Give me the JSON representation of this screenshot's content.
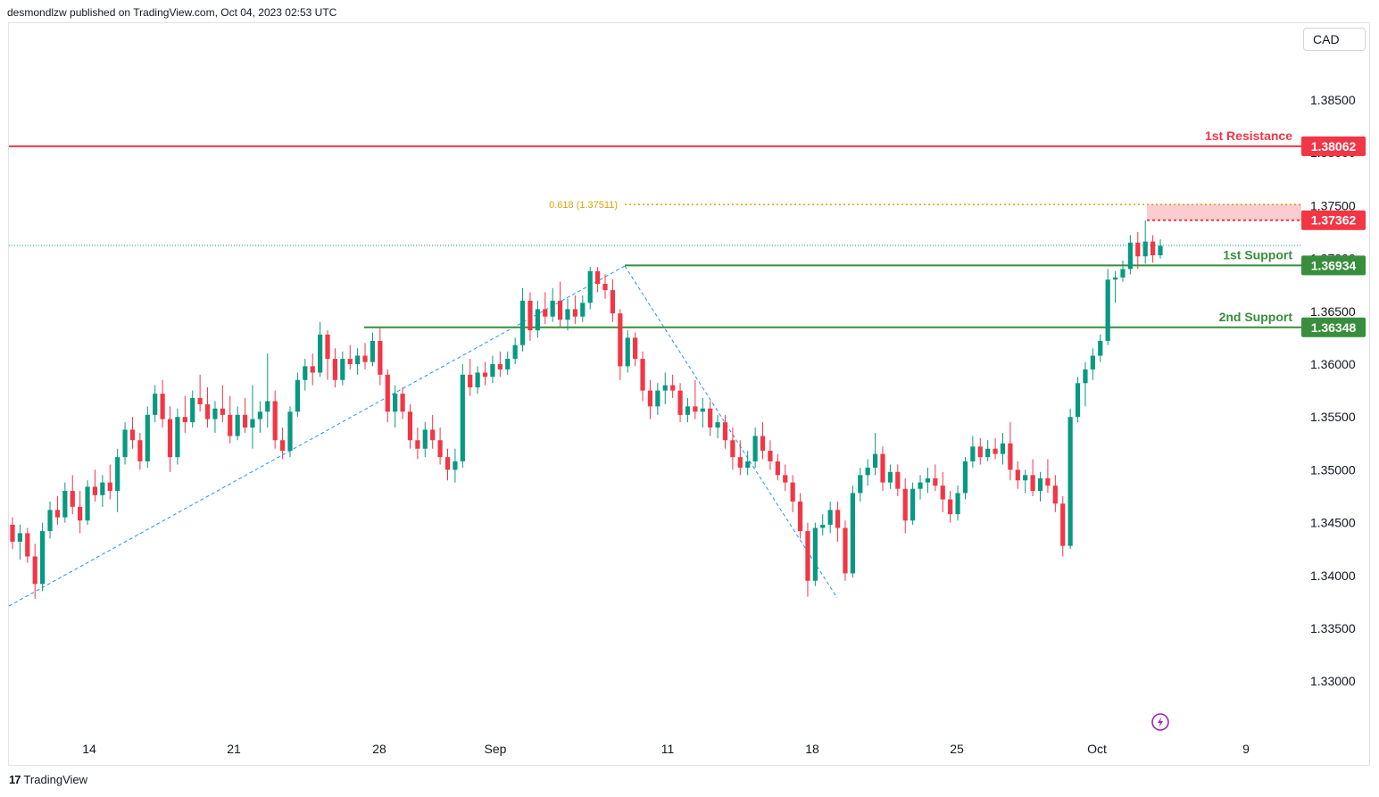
{
  "header": {
    "publisher": "desmondlzw published on TradingView.com, Oct 04, 2023 02:53 UTC"
  },
  "currency": "CAD",
  "footer": {
    "brand": "TradingView"
  },
  "chart_data": {
    "type": "candlestick",
    "y_ticks": [
      "1.38500",
      "1.38000",
      "1.37500",
      "1.37000",
      "1.36500",
      "1.36000",
      "1.35500",
      "1.35000",
      "1.34500",
      "1.34000",
      "1.33500",
      "1.33000"
    ],
    "y_tick_values": [
      1.385,
      1.38,
      1.375,
      1.37,
      1.365,
      1.36,
      1.355,
      1.35,
      1.345,
      1.34,
      1.335,
      1.33
    ],
    "x_ticks": [
      "14",
      "21",
      "28",
      "Sep",
      "11",
      "18",
      "25",
      "Oct",
      "9"
    ],
    "levels": [
      {
        "name": "1st Resistance",
        "value": "1.38062",
        "price": 1.38062,
        "color": "#f23645"
      },
      {
        "name": "1st Support",
        "value": "1.36934",
        "price": 1.36934,
        "color": "#388e3c"
      },
      {
        "name": "2nd Support",
        "value": "1.36348",
        "price": 1.36348,
        "color": "#388e3c"
      }
    ],
    "zone_level": {
      "value": "1.37362",
      "price": 1.37362,
      "color": "#f23645"
    },
    "fib": {
      "label": "0.618 (1.37511)",
      "price": 1.37511,
      "color": "#e3a008"
    },
    "candles": [
      [
        1.3448,
        1.3455,
        1.3425,
        1.3432
      ],
      [
        1.3432,
        1.3448,
        1.3415,
        1.344
      ],
      [
        1.344,
        1.3445,
        1.3412,
        1.3418
      ],
      [
        1.3418,
        1.343,
        1.3378,
        1.3392
      ],
      [
        1.3392,
        1.345,
        1.3385,
        1.3442
      ],
      [
        1.3442,
        1.347,
        1.3435,
        1.3462
      ],
      [
        1.3462,
        1.3475,
        1.3448,
        1.3455
      ],
      [
        1.3455,
        1.3488,
        1.345,
        1.348
      ],
      [
        1.348,
        1.3495,
        1.3458,
        1.3465
      ],
      [
        1.3465,
        1.348,
        1.344,
        1.3452
      ],
      [
        1.3452,
        1.349,
        1.3448,
        1.3484
      ],
      [
        1.3484,
        1.35,
        1.347,
        1.3476
      ],
      [
        1.3476,
        1.3495,
        1.3465,
        1.3488
      ],
      [
        1.3488,
        1.3505,
        1.3472,
        1.348
      ],
      [
        1.348,
        1.352,
        1.346,
        1.3512
      ],
      [
        1.3512,
        1.3545,
        1.3505,
        1.3538
      ],
      [
        1.3538,
        1.355,
        1.352,
        1.3528
      ],
      [
        1.3528,
        1.3535,
        1.35,
        1.3508
      ],
      [
        1.3508,
        1.356,
        1.3502,
        1.3552
      ],
      [
        1.3552,
        1.358,
        1.3545,
        1.3572
      ],
      [
        1.3572,
        1.3585,
        1.354,
        1.3548
      ],
      [
        1.3548,
        1.356,
        1.3498,
        1.3512
      ],
      [
        1.3512,
        1.3558,
        1.3505,
        1.355
      ],
      [
        1.355,
        1.357,
        1.3535,
        1.3545
      ],
      [
        1.3545,
        1.3575,
        1.354,
        1.3568
      ],
      [
        1.3568,
        1.359,
        1.3555,
        1.3562
      ],
      [
        1.3562,
        1.3578,
        1.354,
        1.3548
      ],
      [
        1.3548,
        1.3565,
        1.3535,
        1.3558
      ],
      [
        1.3558,
        1.358,
        1.3545,
        1.3552
      ],
      [
        1.3552,
        1.357,
        1.3525,
        1.3532
      ],
      [
        1.3532,
        1.356,
        1.3528,
        1.3552
      ],
      [
        1.3552,
        1.3568,
        1.3535,
        1.354
      ],
      [
        1.354,
        1.358,
        1.352,
        1.3548
      ],
      [
        1.3548,
        1.3565,
        1.3535,
        1.3555
      ],
      [
        1.3555,
        1.361,
        1.354,
        1.3565
      ],
      [
        1.3565,
        1.3575,
        1.352,
        1.3528
      ],
      [
        1.3528,
        1.354,
        1.351,
        1.3518
      ],
      [
        1.3518,
        1.356,
        1.3512,
        1.3555
      ],
      [
        1.3555,
        1.3592,
        1.355,
        1.3585
      ],
      [
        1.3585,
        1.3605,
        1.3575,
        1.3598
      ],
      [
        1.3598,
        1.361,
        1.358,
        1.3592
      ],
      [
        1.3592,
        1.364,
        1.3588,
        1.3628
      ],
      [
        1.3628,
        1.3632,
        1.3585,
        1.3605
      ],
      [
        1.3605,
        1.3615,
        1.3578,
        1.3585
      ],
      [
        1.3585,
        1.3612,
        1.358,
        1.3605
      ],
      [
        1.3605,
        1.3618,
        1.3595,
        1.36
      ],
      [
        1.36,
        1.3615,
        1.359,
        1.3608
      ],
      [
        1.3608,
        1.362,
        1.3595,
        1.3602
      ],
      [
        1.3602,
        1.363,
        1.3598,
        1.3622
      ],
      [
        1.3622,
        1.3635,
        1.358,
        1.359
      ],
      [
        1.359,
        1.3595,
        1.3545,
        1.3555
      ],
      [
        1.3555,
        1.358,
        1.354,
        1.3572
      ],
      [
        1.3572,
        1.3578,
        1.3548,
        1.3555
      ],
      [
        1.3555,
        1.3562,
        1.352,
        1.3528
      ],
      [
        1.3528,
        1.354,
        1.351,
        1.352
      ],
      [
        1.352,
        1.3545,
        1.3512,
        1.3538
      ],
      [
        1.3538,
        1.3552,
        1.352,
        1.3528
      ],
      [
        1.3528,
        1.354,
        1.3505,
        1.3512
      ],
      [
        1.3512,
        1.352,
        1.349,
        1.35
      ],
      [
        1.35,
        1.352,
        1.3488,
        1.3508
      ],
      [
        1.3508,
        1.36,
        1.3502,
        1.359
      ],
      [
        1.359,
        1.3605,
        1.357,
        1.3578
      ],
      [
        1.3578,
        1.3598,
        1.3572,
        1.3592
      ],
      [
        1.3592,
        1.3602,
        1.358,
        1.3588
      ],
      [
        1.3588,
        1.3608,
        1.3582,
        1.36
      ],
      [
        1.36,
        1.3612,
        1.3588,
        1.3595
      ],
      [
        1.3595,
        1.3612,
        1.359,
        1.3605
      ],
      [
        1.3605,
        1.3625,
        1.36,
        1.3618
      ],
      [
        1.3618,
        1.3672,
        1.3612,
        1.366
      ],
      [
        1.366,
        1.3668,
        1.3622,
        1.3632
      ],
      [
        1.3632,
        1.366,
        1.3625,
        1.3652
      ],
      [
        1.3652,
        1.3668,
        1.3638,
        1.3645
      ],
      [
        1.3645,
        1.3672,
        1.364,
        1.366
      ],
      [
        1.366,
        1.3678,
        1.3635,
        1.3642
      ],
      [
        1.3642,
        1.3662,
        1.3632,
        1.3652
      ],
      [
        1.3652,
        1.3665,
        1.3638,
        1.3645
      ],
      [
        1.3645,
        1.3665,
        1.364,
        1.3658
      ],
      [
        1.3658,
        1.3692,
        1.3652,
        1.3688
      ],
      [
        1.3688,
        1.3692,
        1.3668,
        1.3676
      ],
      [
        1.3676,
        1.3685,
        1.3662,
        1.367
      ],
      [
        1.367,
        1.368,
        1.364,
        1.3648
      ],
      [
        1.3648,
        1.3652,
        1.3585,
        1.3598
      ],
      [
        1.3598,
        1.3632,
        1.3592,
        1.3625
      ],
      [
        1.3625,
        1.363,
        1.3598,
        1.3605
      ],
      [
        1.3605,
        1.3612,
        1.3565,
        1.3575
      ],
      [
        1.3575,
        1.3585,
        1.3548,
        1.356
      ],
      [
        1.356,
        1.3582,
        1.3552,
        1.3575
      ],
      [
        1.3575,
        1.3592,
        1.3562,
        1.358
      ],
      [
        1.358,
        1.359,
        1.3568,
        1.3575
      ],
      [
        1.3575,
        1.3582,
        1.3545,
        1.3552
      ],
      [
        1.3552,
        1.3568,
        1.3545,
        1.356
      ],
      [
        1.356,
        1.3585,
        1.3548,
        1.3555
      ],
      [
        1.3555,
        1.3568,
        1.354,
        1.3558
      ],
      [
        1.3558,
        1.3565,
        1.3532,
        1.354
      ],
      [
        1.354,
        1.3552,
        1.353,
        1.3545
      ],
      [
        1.3545,
        1.3552,
        1.352,
        1.3528
      ],
      [
        1.3528,
        1.354,
        1.35,
        1.3512
      ],
      [
        1.3512,
        1.3528,
        1.3495,
        1.3502
      ],
      [
        1.3502,
        1.3518,
        1.3495,
        1.3508
      ],
      [
        1.3508,
        1.354,
        1.3502,
        1.3532
      ],
      [
        1.3532,
        1.3545,
        1.351,
        1.3518
      ],
      [
        1.3518,
        1.3528,
        1.35,
        1.3508
      ],
      [
        1.3508,
        1.3515,
        1.349,
        1.3495
      ],
      [
        1.3495,
        1.3505,
        1.348,
        1.3488
      ],
      [
        1.3488,
        1.3495,
        1.346,
        1.347
      ],
      [
        1.347,
        1.3478,
        1.3435,
        1.3442
      ],
      [
        1.3442,
        1.345,
        1.338,
        1.3395
      ],
      [
        1.3395,
        1.345,
        1.339,
        1.3445
      ],
      [
        1.3445,
        1.3458,
        1.3438,
        1.3448
      ],
      [
        1.3448,
        1.347,
        1.344,
        1.3462
      ],
      [
        1.3462,
        1.347,
        1.3432,
        1.3445
      ],
      [
        1.3445,
        1.3452,
        1.3395,
        1.3402
      ],
      [
        1.3402,
        1.3485,
        1.3398,
        1.3478
      ],
      [
        1.3478,
        1.3502,
        1.347,
        1.3495
      ],
      [
        1.3495,
        1.351,
        1.3485,
        1.3502
      ],
      [
        1.3502,
        1.3535,
        1.3495,
        1.3515
      ],
      [
        1.3515,
        1.3522,
        1.348,
        1.3488
      ],
      [
        1.3488,
        1.3505,
        1.3482,
        1.3498
      ],
      [
        1.3498,
        1.3505,
        1.3475,
        1.3482
      ],
      [
        1.3482,
        1.3492,
        1.344,
        1.3452
      ],
      [
        1.3452,
        1.3488,
        1.3448,
        1.3482
      ],
      [
        1.3482,
        1.3495,
        1.3472,
        1.3488
      ],
      [
        1.3488,
        1.3502,
        1.3478,
        1.3492
      ],
      [
        1.3492,
        1.3505,
        1.348,
        1.3485
      ],
      [
        1.3485,
        1.3498,
        1.346,
        1.3472
      ],
      [
        1.3472,
        1.348,
        1.345,
        1.3458
      ],
      [
        1.3458,
        1.3485,
        1.3452,
        1.3478
      ],
      [
        1.3478,
        1.3512,
        1.3472,
        1.3508
      ],
      [
        1.3508,
        1.3532,
        1.3502,
        1.3522
      ],
      [
        1.3522,
        1.353,
        1.3505,
        1.3512
      ],
      [
        1.3512,
        1.3528,
        1.3508,
        1.352
      ],
      [
        1.352,
        1.353,
        1.351,
        1.3515
      ],
      [
        1.3515,
        1.3535,
        1.3505,
        1.3525
      ],
      [
        1.3525,
        1.3545,
        1.349,
        1.35
      ],
      [
        1.35,
        1.3508,
        1.3482,
        1.349
      ],
      [
        1.349,
        1.35,
        1.3478,
        1.3495
      ],
      [
        1.3495,
        1.351,
        1.3475,
        1.348
      ],
      [
        1.348,
        1.3498,
        1.347,
        1.3492
      ],
      [
        1.3492,
        1.351,
        1.3478,
        1.3485
      ],
      [
        1.3485,
        1.3495,
        1.346,
        1.3468
      ],
      [
        1.3468,
        1.3475,
        1.3418,
        1.3428
      ],
      [
        1.3428,
        1.3558,
        1.3425,
        1.355
      ],
      [
        1.355,
        1.3588,
        1.3545,
        1.3582
      ],
      [
        1.3582,
        1.3602,
        1.356,
        1.3595
      ],
      [
        1.3595,
        1.3615,
        1.3585,
        1.3608
      ],
      [
        1.3608,
        1.3628,
        1.3602,
        1.3622
      ],
      [
        1.3622,
        1.369,
        1.3618,
        1.368
      ],
      [
        1.368,
        1.3688,
        1.3658,
        1.3682
      ],
      [
        1.3682,
        1.3698,
        1.3678,
        1.369
      ],
      [
        1.369,
        1.3722,
        1.3685,
        1.3715
      ],
      [
        1.3715,
        1.3725,
        1.369,
        1.3702
      ],
      [
        1.3702,
        1.3736,
        1.3695,
        1.3716
      ],
      [
        1.3716,
        1.3722,
        1.3696,
        1.3703
      ],
      [
        1.3703,
        1.3718,
        1.37,
        1.3712
      ]
    ]
  }
}
